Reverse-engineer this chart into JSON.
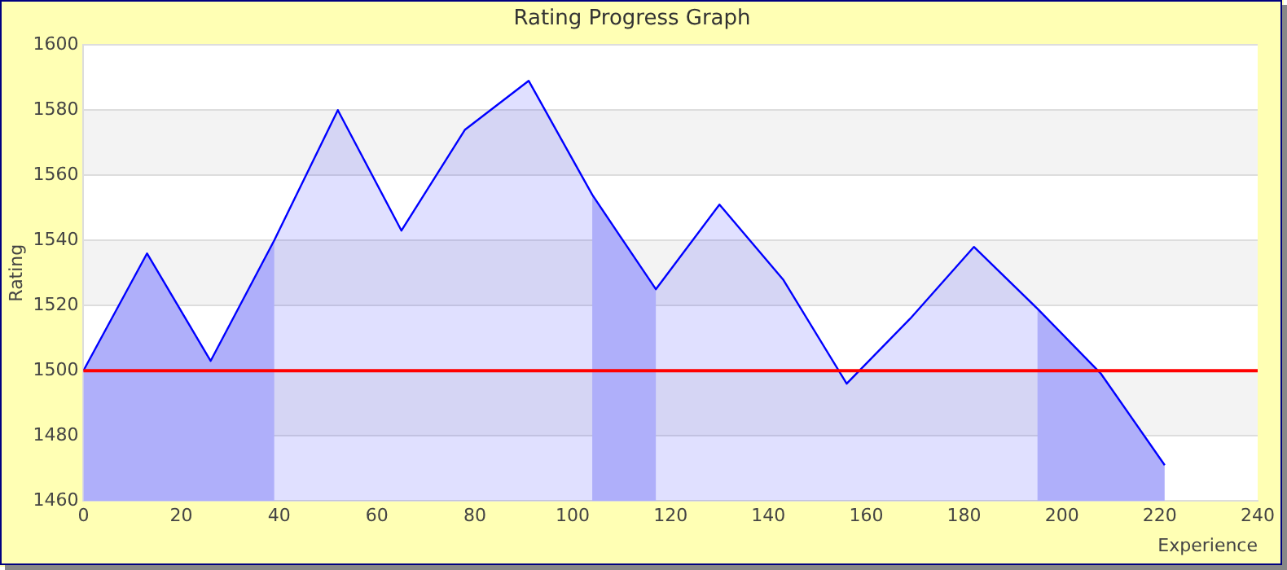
{
  "chart_data": {
    "type": "area",
    "title": "Rating Progress Graph",
    "xlabel": "Experience",
    "ylabel": "Rating",
    "x": [
      0,
      13,
      26,
      39,
      52,
      65,
      78,
      91,
      104,
      117,
      130,
      143,
      156,
      169,
      182,
      195,
      208,
      221
    ],
    "series": [
      {
        "color": "#0000ff",
        "values": [
          1500,
          1536,
          1503,
          1540,
          1580,
          1543,
          1574,
          1589,
          1554,
          1525,
          1551,
          1528,
          1496,
          1516,
          1538,
          1519,
          1499,
          1471
        ]
      }
    ],
    "xlim": [
      0,
      240
    ],
    "xticks": [
      0,
      20,
      40,
      60,
      80,
      100,
      120,
      140,
      160,
      180,
      200,
      220,
      240
    ],
    "ylim": [
      1460,
      1600
    ],
    "yticks": [
      1460,
      1480,
      1500,
      1520,
      1540,
      1560,
      1580,
      1600
    ],
    "grid": "y",
    "marker": "none",
    "legend": false,
    "ref_lines": [
      {
        "axis": "y",
        "value": 1500,
        "color": "#ff0000"
      }
    ],
    "bands": [
      {
        "axis": "x",
        "from": 0,
        "to": 39,
        "color": "#c8c8fa"
      },
      {
        "axis": "x",
        "from": 104,
        "to": 117,
        "color": "#c8c8fa"
      },
      {
        "axis": "x",
        "from": 195,
        "to": 221,
        "color": "#c8c8fa"
      }
    ]
  }
}
